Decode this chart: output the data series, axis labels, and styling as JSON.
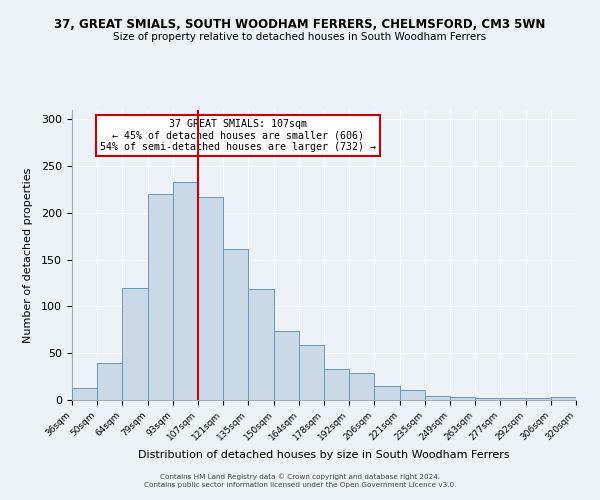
{
  "title": "37, GREAT SMIALS, SOUTH WOODHAM FERRERS, CHELMSFORD, CM3 5WN",
  "subtitle": "Size of property relative to detached houses in South Woodham Ferrers",
  "xlabel": "Distribution of detached houses by size in South Woodham Ferrers",
  "ylabel": "Number of detached properties",
  "bins": [
    36,
    50,
    64,
    79,
    93,
    107,
    121,
    135,
    150,
    164,
    178,
    192,
    206,
    221,
    235,
    249,
    263,
    277,
    292,
    306,
    320
  ],
  "values": [
    13,
    40,
    120,
    220,
    233,
    217,
    161,
    119,
    74,
    59,
    33,
    29,
    15,
    11,
    4,
    3,
    2,
    2,
    2,
    3
  ],
  "bar_color": "#c9d9e8",
  "bar_edge_color": "#6699bb",
  "vline_x": 107,
  "vline_color": "#cc0000",
  "annotation_title": "37 GREAT SMIALS: 107sqm",
  "annotation_line1": "← 45% of detached houses are smaller (606)",
  "annotation_line2": "54% of semi-detached houses are larger (732) →",
  "annotation_box_color": "#cc0000",
  "ylim": [
    0,
    310
  ],
  "yticks": [
    0,
    50,
    100,
    150,
    200,
    250,
    300
  ],
  "footer1": "Contains HM Land Registry data © Crown copyright and database right 2024.",
  "footer2": "Contains public sector information licensed under the Open Government Licence v3.0.",
  "background_color": "#edf2f8",
  "plot_bg_color": "#edf2f8"
}
